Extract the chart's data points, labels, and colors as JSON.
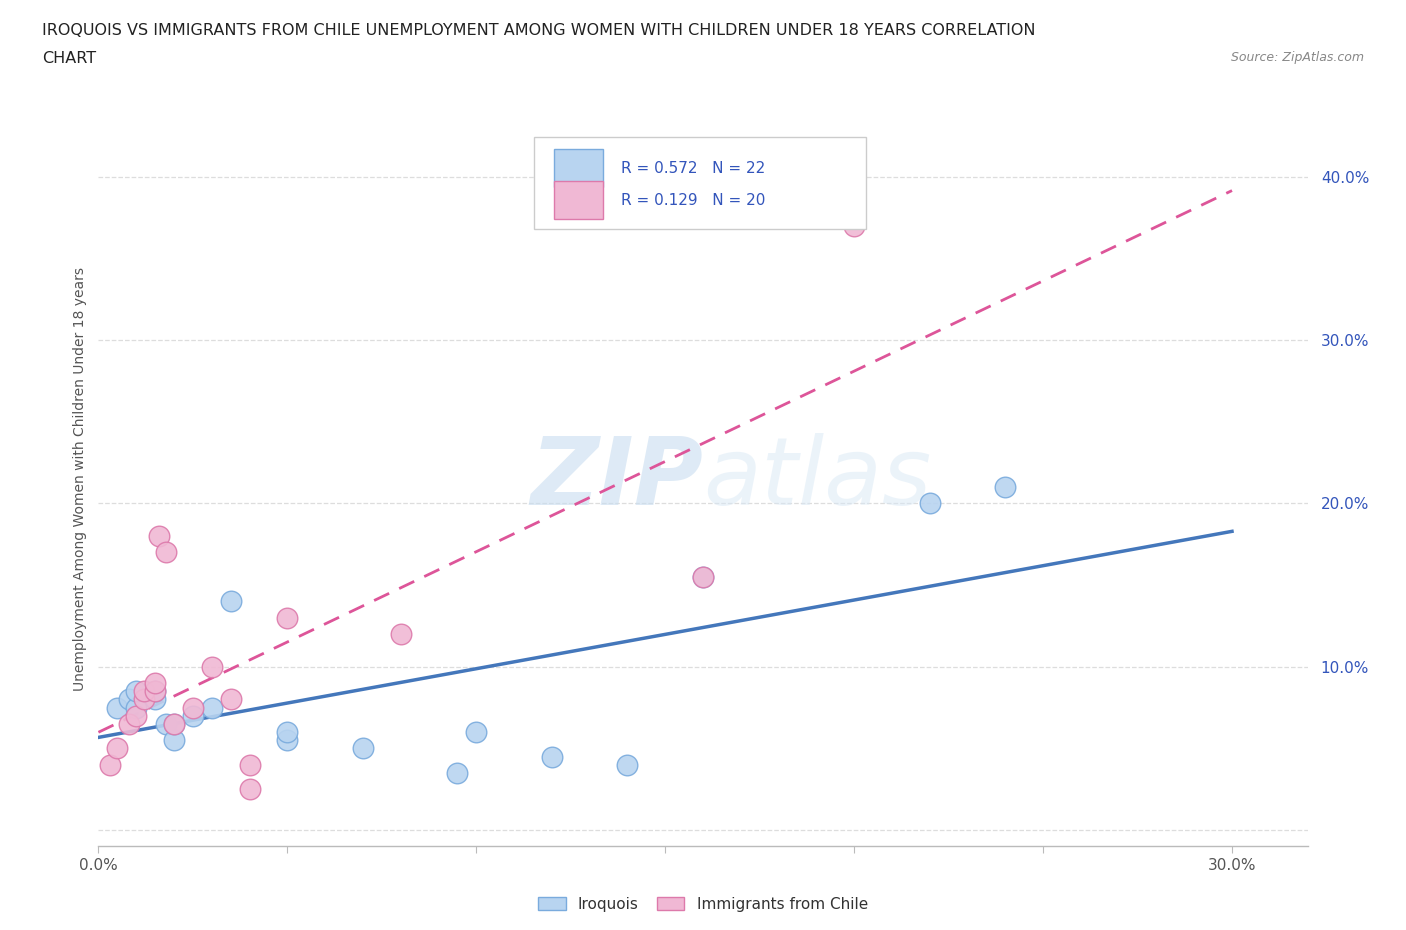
{
  "title_line1": "IROQUOIS VS IMMIGRANTS FROM CHILE UNEMPLOYMENT AMONG WOMEN WITH CHILDREN UNDER 18 YEARS CORRELATION",
  "title_line2": "CHART",
  "source": "Source: ZipAtlas.com",
  "ylabel": "Unemployment Among Women with Children Under 18 years",
  "xlim": [
    0.0,
    0.32
  ],
  "ylim": [
    -0.01,
    0.44
  ],
  "xticks": [
    0.0,
    0.05,
    0.1,
    0.15,
    0.2,
    0.25,
    0.3
  ],
  "xtick_labels": [
    "0.0%",
    "",
    "",
    "",
    "",
    "",
    "30.0%"
  ],
  "ytick_positions": [
    0.0,
    0.1,
    0.2,
    0.3,
    0.4
  ],
  "ytick_labels": [
    "",
    "10.0%",
    "20.0%",
    "30.0%",
    "40.0%"
  ],
  "watermark_zip": "ZIP",
  "watermark_atlas": "atlas",
  "legend_r1": "R = 0.572",
  "legend_n1": "N = 22",
  "legend_r2": "R = 0.129",
  "legend_n2": "N = 20",
  "series1_label": "Iroquois",
  "series2_label": "Immigrants from Chile",
  "series1_color": "#b8d4f0",
  "series2_color": "#f0b8d4",
  "series1_edge": "#7aabdd",
  "series2_edge": "#dd7aab",
  "trendline1_color": "#4477bb",
  "trendline2_color": "#dd5599",
  "background_color": "#ffffff",
  "grid_color": "#dddddd",
  "legend_text_color": "#3355bb",
  "iroquois_x": [
    0.005,
    0.008,
    0.01,
    0.01,
    0.015,
    0.015,
    0.018,
    0.02,
    0.02,
    0.025,
    0.03,
    0.035,
    0.05,
    0.05,
    0.07,
    0.095,
    0.1,
    0.12,
    0.14,
    0.16,
    0.22,
    0.24
  ],
  "iroquois_y": [
    0.075,
    0.08,
    0.075,
    0.085,
    0.08,
    0.085,
    0.065,
    0.055,
    0.065,
    0.07,
    0.075,
    0.14,
    0.055,
    0.06,
    0.05,
    0.035,
    0.06,
    0.045,
    0.04,
    0.155,
    0.2,
    0.21
  ],
  "chile_x": [
    0.003,
    0.005,
    0.008,
    0.01,
    0.012,
    0.012,
    0.015,
    0.015,
    0.016,
    0.018,
    0.02,
    0.025,
    0.03,
    0.035,
    0.04,
    0.04,
    0.05,
    0.08,
    0.16,
    0.2
  ],
  "chile_y": [
    0.04,
    0.05,
    0.065,
    0.07,
    0.08,
    0.085,
    0.085,
    0.09,
    0.18,
    0.17,
    0.065,
    0.075,
    0.1,
    0.08,
    0.04,
    0.025,
    0.13,
    0.12,
    0.155,
    0.37
  ]
}
